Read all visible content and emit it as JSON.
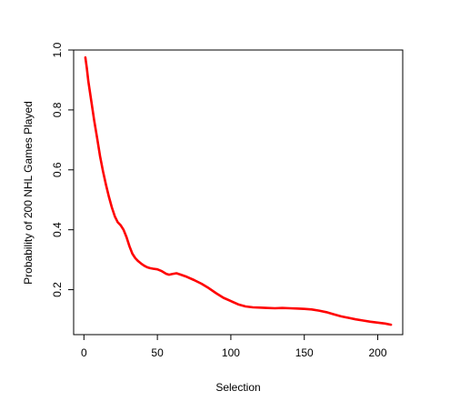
{
  "chart_data": {
    "type": "line",
    "title": "",
    "xlabel": "Selection",
    "ylabel": "Probability of 200 NHL Games Played",
    "xlim": [
      -7,
      217
    ],
    "ylim": [
      0.05,
      1.0
    ],
    "xticks": [
      0,
      50,
      100,
      150,
      200
    ],
    "yticks": [
      0.2,
      0.4,
      0.6,
      0.8,
      1.0
    ],
    "xtick_labels": [
      "0",
      "50",
      "100",
      "150",
      "200"
    ],
    "ytick_labels": [
      "0.2",
      "0.4",
      "0.6",
      "0.8",
      "1.0"
    ],
    "grid": false,
    "legend": "none",
    "series": [
      {
        "color": "#ff0000",
        "x": [
          1,
          2,
          3,
          5,
          7,
          9,
          11,
          13,
          15,
          17,
          19,
          21,
          23,
          25,
          27,
          29,
          31,
          33,
          35,
          37,
          39,
          41,
          43,
          45,
          47,
          50,
          53,
          56,
          58,
          60,
          63,
          66,
          70,
          75,
          80,
          85,
          90,
          95,
          100,
          105,
          110,
          115,
          120,
          125,
          130,
          135,
          140,
          145,
          150,
          155,
          160,
          165,
          170,
          175,
          180,
          185,
          190,
          195,
          200,
          205,
          209
        ],
        "values": [
          0.975,
          0.94,
          0.895,
          0.83,
          0.765,
          0.705,
          0.645,
          0.595,
          0.55,
          0.51,
          0.475,
          0.445,
          0.425,
          0.415,
          0.4,
          0.375,
          0.345,
          0.32,
          0.305,
          0.295,
          0.287,
          0.28,
          0.275,
          0.272,
          0.27,
          0.268,
          0.262,
          0.253,
          0.25,
          0.252,
          0.255,
          0.25,
          0.243,
          0.232,
          0.22,
          0.205,
          0.188,
          0.173,
          0.162,
          0.151,
          0.144,
          0.141,
          0.14,
          0.139,
          0.138,
          0.139,
          0.138,
          0.137,
          0.136,
          0.134,
          0.13,
          0.125,
          0.118,
          0.111,
          0.106,
          0.101,
          0.097,
          0.093,
          0.09,
          0.087,
          0.083
        ]
      }
    ]
  }
}
